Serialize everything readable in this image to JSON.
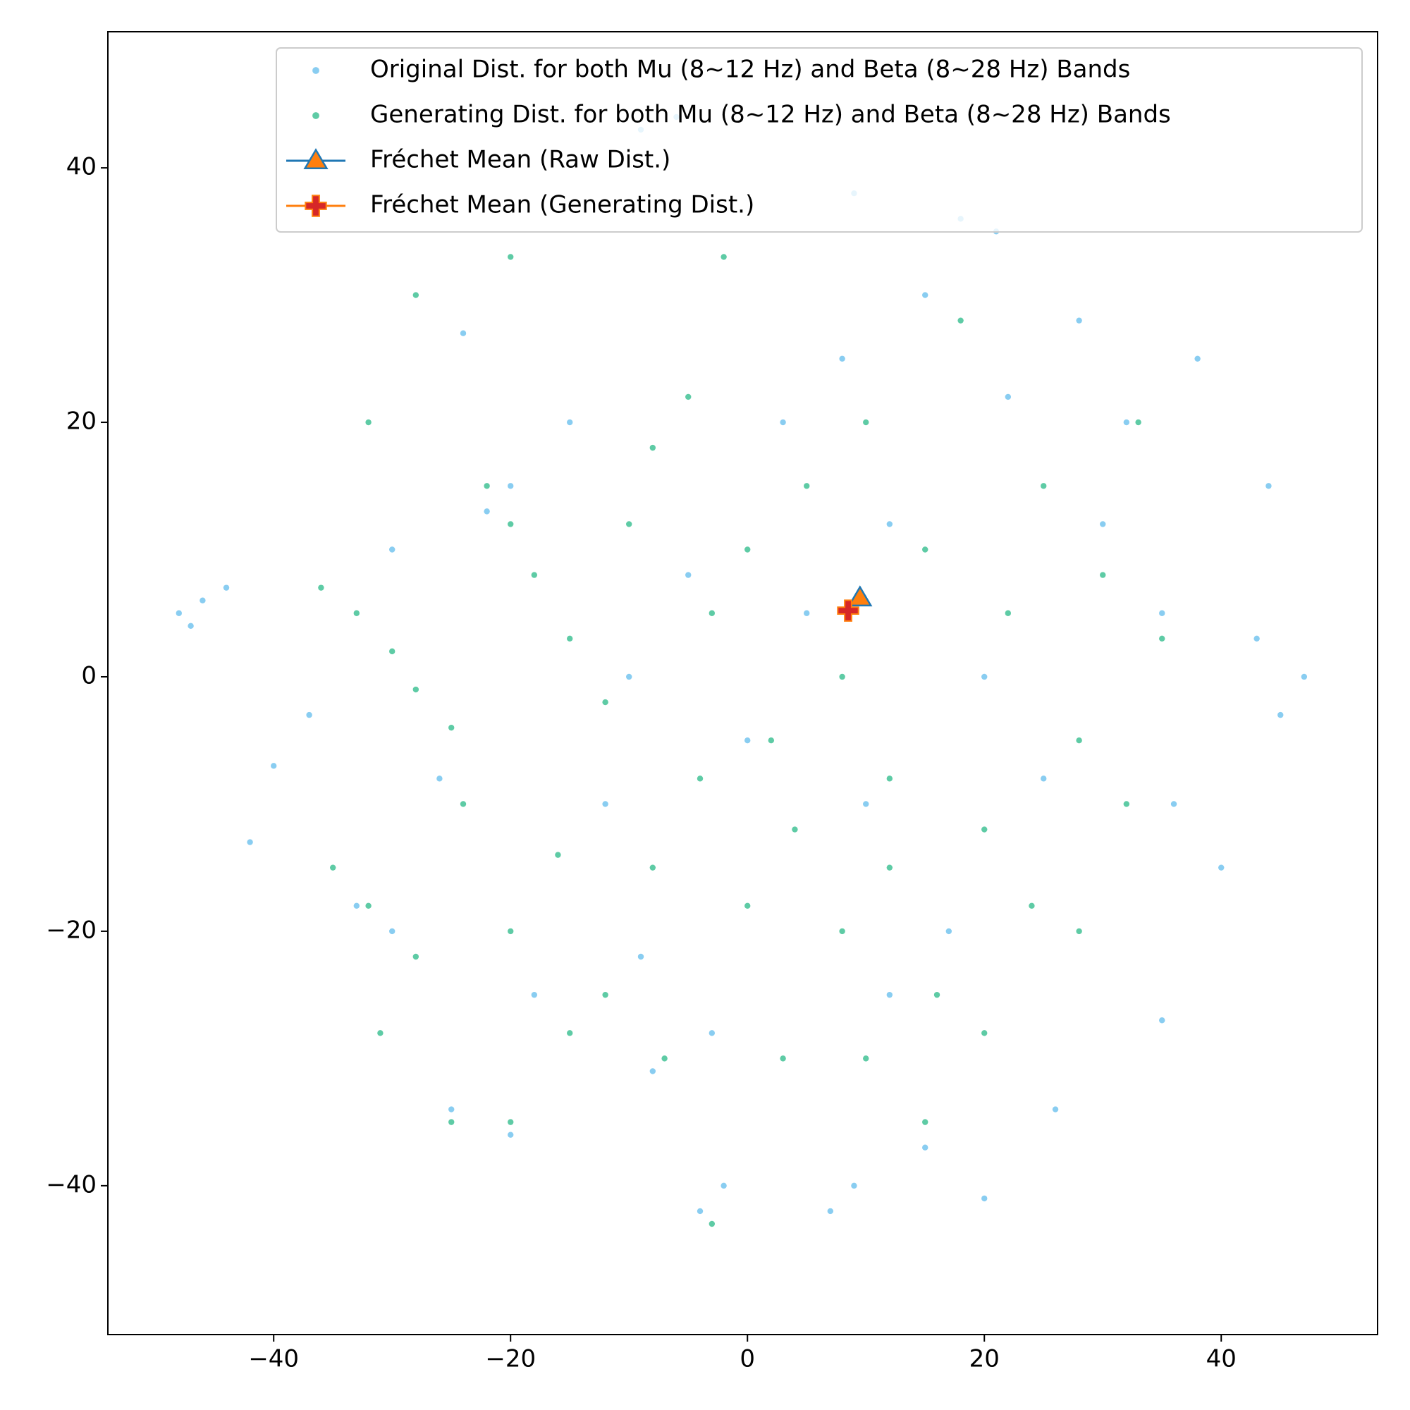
{
  "chart_data": {
    "type": "scatter",
    "xlim": [
      -54,
      53.2
    ],
    "ylim": [
      -51.7,
      50.7
    ],
    "xticks": [
      {
        "value": -40,
        "label": "−40"
      },
      {
        "value": -20,
        "label": "−20"
      },
      0,
      20,
      40
    ],
    "yticks": [
      {
        "value": -40,
        "label": "−40"
      },
      {
        "value": -20,
        "label": "−20"
      },
      0,
      20,
      40
    ],
    "legend": "upper right",
    "series": [
      {
        "name": "Original Dist. for both Mu (8~12 Hz) and Beta (8~28 Hz) Bands",
        "color": "#89cdf1",
        "marker": "dot",
        "x": [
          -46,
          -44,
          -47,
          -42,
          -40,
          -33,
          -30,
          -25,
          -20,
          -20,
          -22,
          -9,
          -6,
          9,
          18,
          21,
          15,
          32,
          43,
          45,
          47,
          -4,
          -2,
          7,
          9,
          20,
          15,
          35,
          36,
          26,
          40,
          38,
          -8,
          -9,
          -3,
          5,
          12,
          0,
          -12,
          20,
          25,
          30,
          -15,
          -5,
          10,
          -26,
          -37,
          35,
          22,
          -18,
          3,
          -10,
          17,
          28,
          -30,
          8,
          -24,
          44,
          -48,
          12
        ],
        "y": [
          6,
          7,
          4,
          -13,
          -7,
          -18,
          -20,
          -34,
          -36,
          15,
          13,
          43,
          44,
          38,
          36,
          35,
          30,
          20,
          3,
          -3,
          0,
          -42,
          -40,
          -42,
          -40,
          -41,
          -37,
          -27,
          -10,
          -34,
          -15,
          25,
          -31,
          -22,
          -28,
          5,
          12,
          -5,
          -10,
          0,
          -8,
          12,
          20,
          8,
          -10,
          -8,
          -3,
          5,
          22,
          -25,
          20,
          0,
          -20,
          28,
          10,
          25,
          27,
          15,
          5,
          -25
        ]
      },
      {
        "name": "Generating Dist. for both Mu (8~12 Hz) and Beta (8~28 Hz) Bands",
        "color": "#5ecba5",
        "marker": "dot",
        "x": [
          -36,
          -33,
          -30,
          -28,
          -25,
          -22,
          -20,
          -18,
          -15,
          -12,
          -10,
          -8,
          -5,
          -3,
          0,
          2,
          5,
          8,
          10,
          12,
          15,
          18,
          20,
          22,
          25,
          28,
          30,
          33,
          35,
          -35,
          -32,
          -28,
          -24,
          -20,
          -16,
          -12,
          -8,
          -4,
          0,
          4,
          8,
          12,
          16,
          20,
          24,
          28,
          32,
          -31,
          -25,
          -20,
          -15,
          -7,
          -3,
          3,
          10,
          15,
          -28,
          -32,
          -20,
          -2
        ],
        "y": [
          7,
          5,
          2,
          -1,
          -4,
          15,
          12,
          8,
          3,
          -2,
          12,
          18,
          22,
          5,
          10,
          -5,
          15,
          0,
          20,
          -8,
          10,
          28,
          -12,
          5,
          15,
          -5,
          8,
          20,
          3,
          -15,
          -18,
          -22,
          -10,
          -20,
          -14,
          -25,
          -15,
          -8,
          -18,
          -12,
          -20,
          -15,
          -25,
          -28,
          -18,
          -20,
          -10,
          -28,
          -35,
          -35,
          -28,
          -30,
          -43,
          -30,
          -30,
          -35,
          30,
          20,
          33,
          33
        ]
      },
      {
        "name": "Fréchet Mean (Raw Dist.)",
        "color": "#1f77b4",
        "fill": "#ff7f0e",
        "marker": "triangle",
        "x": [
          9.5
        ],
        "y": [
          6.2
        ]
      },
      {
        "name": "Fréchet Mean (Generating Dist.)",
        "color": "#ff7f0e",
        "fill": "#d62728",
        "marker": "plus",
        "x": [
          8.5
        ],
        "y": [
          5.2
        ]
      }
    ]
  }
}
